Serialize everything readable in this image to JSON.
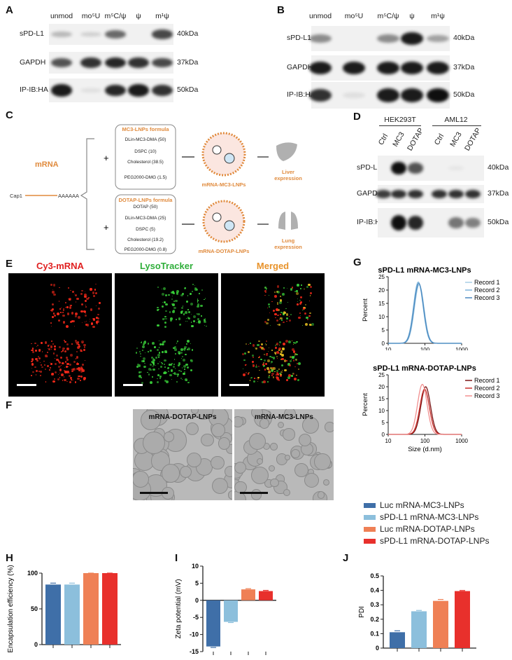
{
  "panels": {
    "A": "A",
    "B": "B",
    "C": "C",
    "D": "D",
    "E": "E",
    "F": "F",
    "G": "G",
    "H": "H",
    "I": "I",
    "J": "J"
  },
  "blotA": {
    "lanes": [
      "unmod",
      "mo⁵U",
      "m⁵C/ψ",
      "ψ",
      "m¹ψ"
    ],
    "rows": [
      {
        "label": "sPD-L1",
        "kda": "40kDa",
        "intensity": [
          0.25,
          0.15,
          0.6,
          0.0,
          0.75
        ]
      },
      {
        "label": "GAPDH",
        "kda": "37kDa",
        "intensity": [
          0.7,
          0.85,
          0.9,
          0.85,
          0.75
        ]
      },
      {
        "label": "IP-IB:HA",
        "kda": "50kDa",
        "intensity": [
          0.95,
          0.08,
          0.9,
          0.95,
          0.85
        ]
      }
    ]
  },
  "blotB": {
    "lanes": [
      "unmod",
      "mo⁵U",
      "m⁵C/ψ",
      "ψ",
      "m¹ψ"
    ],
    "rows": [
      {
        "label": "sPD-L1",
        "kda": "40kDa",
        "intensity": [
          0.45,
          0.0,
          0.45,
          0.95,
          0.35
        ]
      },
      {
        "label": "GAPDH",
        "kda": "37kDa",
        "intensity": [
          0.95,
          0.95,
          0.95,
          0.95,
          0.95
        ]
      },
      {
        "label": "IP-IB:HA",
        "kda": "50kDa",
        "intensity": [
          0.85,
          0.08,
          0.95,
          0.95,
          1.0
        ]
      }
    ]
  },
  "diagram": {
    "mrna": "mRNA",
    "cap": "Cap1",
    "polyA": "AAAAAA",
    "mc3": {
      "title": "MC3-LNPs formula",
      "items": [
        "DLin-MC3-DMA (50)",
        "DSPC (10)",
        "Cholesterol (38.5)",
        "PEG2000-DMG (1.5)"
      ],
      "particle": "mRNA-MC3-LNPs",
      "organ": "Liver",
      "organ2": "expression"
    },
    "dotap": {
      "title": "DOTAP-LNPs formula",
      "items": [
        "DOTAP (50)",
        "DLin-MC3-DMA (25)",
        "DSPC (5)",
        "Cholesterol (19.2)",
        "PEG2000-DMG (0.8)"
      ],
      "particle": "mRNA-DOTAP-LNPs",
      "organ": "Lung",
      "organ2": "expression"
    },
    "plus": "+",
    "accent": "#e08a3c"
  },
  "blotD": {
    "groups": [
      "HEK293T",
      "AML12"
    ],
    "lanes": [
      "Ctrl",
      "MC3",
      "DOTAP",
      "Ctrl",
      "MC3",
      "DOTAP"
    ],
    "rows": [
      {
        "label": "sPD-L1",
        "kda": "40kDa",
        "intensity": [
          0,
          1.0,
          0.7,
          0,
          0.05,
          0
        ]
      },
      {
        "label": "GAPDH",
        "kda": "37kDa",
        "intensity": [
          0.8,
          0.85,
          0.85,
          0.85,
          0.85,
          0.85
        ]
      },
      {
        "label": "IP-IB:HA",
        "kda": "50kDa",
        "intensity": [
          0,
          1.0,
          0.9,
          0,
          0.55,
          0.5
        ]
      }
    ]
  },
  "microscopy": {
    "titles": [
      {
        "text": "Cy3-mRNA",
        "color": "#e02020"
      },
      {
        "text": "LysoTracker",
        "color": "#2fae3a"
      },
      {
        "text": "Merged",
        "color": "#e8922a"
      }
    ]
  },
  "cryo": {
    "titles": [
      "mRNA-DOTAP-LNPs",
      "mRNA-MC3-LNPs"
    ]
  },
  "chart_data": [
    {
      "type": "line",
      "title": "sPD-L1 mRNA-MC3-LNPs",
      "xlabel": "",
      "ylabel": "Percent",
      "xscale": "log",
      "xlim": [
        10,
        1000
      ],
      "ylim": [
        0,
        25
      ],
      "xticks": [
        "10",
        "100",
        "1000"
      ],
      "yticks": [
        "0",
        "5",
        "10",
        "15",
        "20",
        "25"
      ],
      "legend": "right",
      "series": [
        {
          "name": "Record 1",
          "peak_size": 70,
          "peak_percent": 22,
          "color": "#a7cde6"
        },
        {
          "name": "Record 2",
          "peak_size": 66,
          "peak_percent": 23,
          "color": "#7db3da"
        },
        {
          "name": "Record 3",
          "peak_size": 68,
          "peak_percent": 22.5,
          "color": "#4a89c0"
        }
      ]
    },
    {
      "type": "line",
      "title": "sPD-L1 mRNA-DOTAP-LNPs",
      "xlabel": "Size (d.nm)",
      "ylabel": "Percent",
      "xscale": "log",
      "xlim": [
        10,
        1000
      ],
      "ylim": [
        0,
        25
      ],
      "xticks": [
        "10",
        "100",
        "1000"
      ],
      "yticks": [
        "0",
        "5",
        "10",
        "15",
        "20",
        "25"
      ],
      "legend": "right",
      "series": [
        {
          "name": "Record 1",
          "peak_size": 105,
          "peak_percent": 20,
          "color": "#7a1616"
        },
        {
          "name": "Record 2",
          "peak_size": 98,
          "peak_percent": 19,
          "color": "#c8302c"
        },
        {
          "name": "Record 3",
          "peak_size": 85,
          "peak_percent": 21,
          "color": "#f29090"
        }
      ]
    },
    {
      "type": "bar",
      "ylabel": "Encapsulation efficiency (%)",
      "ylim": [
        0,
        100
      ],
      "yticks": [
        0,
        50,
        100
      ],
      "values": [
        84,
        84,
        100,
        100
      ],
      "errors": [
        2,
        2,
        0,
        0
      ]
    },
    {
      "type": "bar",
      "ylabel": "Zeta potential (mV)",
      "ylim": [
        -15,
        10
      ],
      "yticks": [
        -15,
        -10,
        -5,
        0,
        5,
        10
      ],
      "values": [
        -13.5,
        -6.3,
        3.2,
        2.7
      ],
      "errors": [
        0.3,
        0.2,
        0.2,
        0.2
      ]
    },
    {
      "type": "bar",
      "ylabel": "PDI",
      "ylim": [
        0,
        0.5
      ],
      "yticks": [
        0.0,
        0.1,
        0.2,
        0.3,
        0.4,
        0.5
      ],
      "values": [
        0.11,
        0.255,
        0.327,
        0.395
      ],
      "errors": [
        0.01,
        0.006,
        0.01,
        0.004
      ]
    }
  ],
  "legend": [
    {
      "name": "Luc mRNA-MC3-LNPs",
      "color": "#3f6fa8"
    },
    {
      "name": "sPD-L1 mRNA-MC3-LNPs",
      "color": "#8cbfdc"
    },
    {
      "name": "Luc mRNA-DOTAP-LNPs",
      "color": "#ef8055"
    },
    {
      "name": "sPD-L1 mRNA-DOTAP-LNPs",
      "color": "#e8302c"
    }
  ]
}
